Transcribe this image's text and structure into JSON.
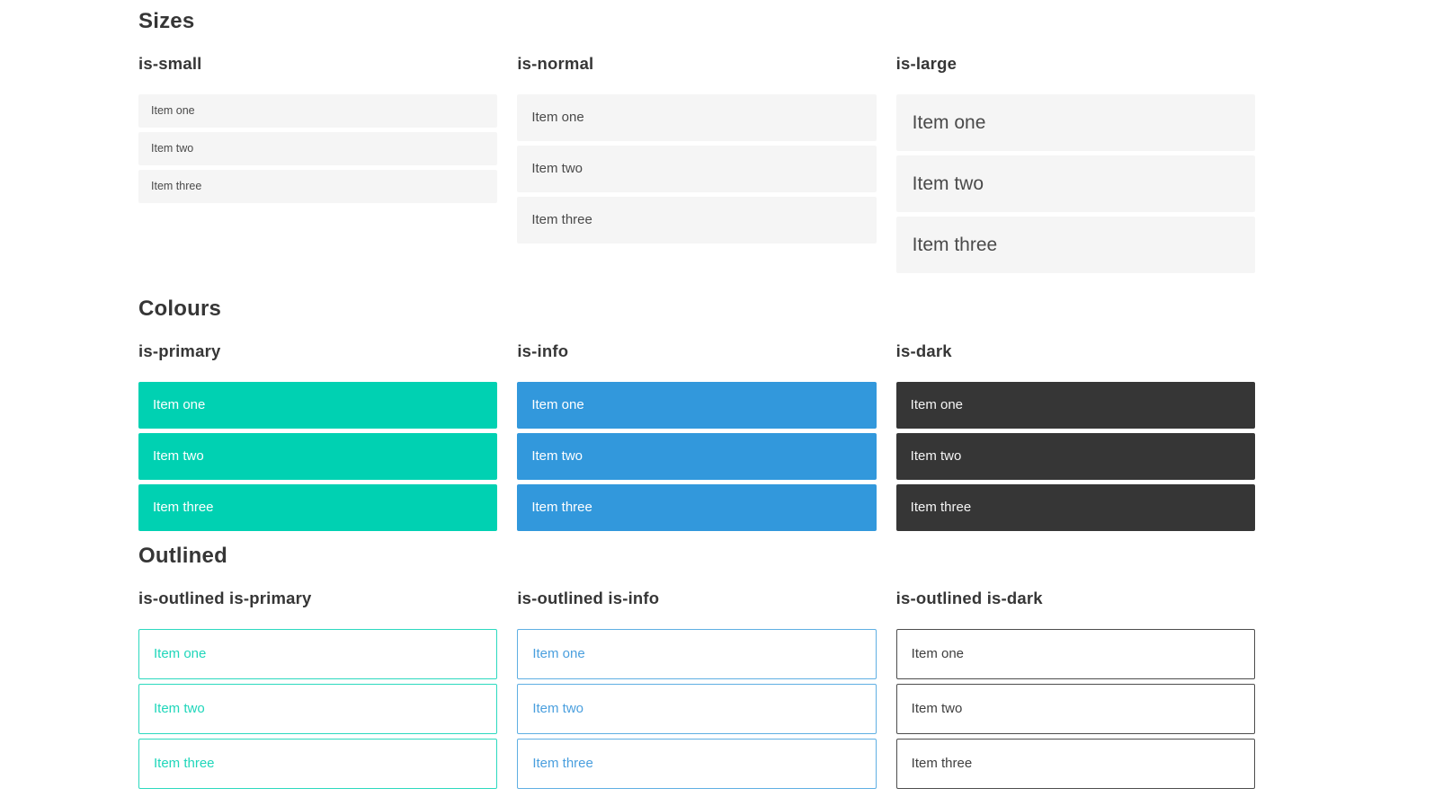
{
  "page": {
    "sections": [
      {
        "title": "Sizes",
        "groups": [
          {
            "label": "is-small",
            "items": [
              "Item one",
              "Item two",
              "Item three"
            ]
          },
          {
            "label": "is-normal",
            "items": [
              "Item one",
              "Item two",
              "Item three"
            ]
          },
          {
            "label": "is-large",
            "items": [
              "Item one",
              "Item two",
              "Item three"
            ]
          }
        ]
      },
      {
        "title": "Colours",
        "groups": [
          {
            "label": "is-primary",
            "items": [
              "Item one",
              "Item two",
              "Item three"
            ]
          },
          {
            "label": "is-info",
            "items": [
              "Item one",
              "Item two",
              "Item three"
            ]
          },
          {
            "label": "is-dark",
            "items": [
              "Item one",
              "Item two",
              "Item three"
            ]
          }
        ]
      },
      {
        "title": "Outlined",
        "groups": [
          {
            "label": "is-outlined is-primary",
            "items": [
              "Item one",
              "Item two",
              "Item three"
            ]
          },
          {
            "label": "is-outlined is-info",
            "items": [
              "Item one",
              "Item two",
              "Item three"
            ]
          },
          {
            "label": "is-outlined is-dark",
            "items": [
              "Item one",
              "Item two",
              "Item three"
            ]
          }
        ]
      }
    ]
  },
  "colors": {
    "primary": "#00d1b2",
    "info": "#3298dc",
    "dark": "#363636",
    "item_background": "#f5f5f5",
    "item_text": "#4a4a4a",
    "heading_text": "#363636",
    "colored_item_text": "#ffffff"
  }
}
